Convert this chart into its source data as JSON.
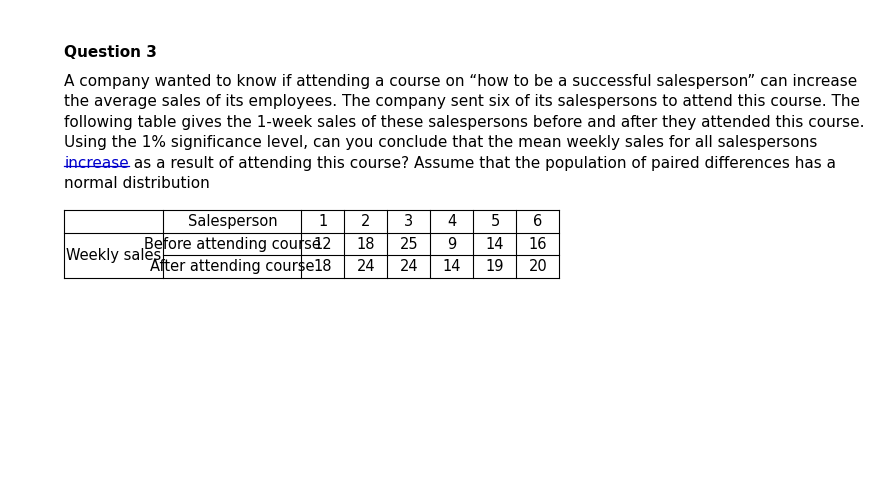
{
  "title": "Question 3",
  "para_lines": [
    "A company wanted to know if attending a course on “how to be a successful salesperson” can increase",
    "the average sales of its employees. The company sent six of its salespersons to attend this course. The",
    "following table gives the 1-week sales of these salespersons before and after they attended this course.",
    "Using the 1% significance level, can you conclude that the mean weekly sales for all salespersons",
    "increase as a result of attending this course? Assume that the population of paired differences has a",
    "normal distribution"
  ],
  "underline_word": "increase",
  "underline_line_idx": 4,
  "underline_color": "#0000cc",
  "row_label": "Weekly sales",
  "row1_label": "Before attending course",
  "row2_label": "After attending course",
  "salesperson_numbers": [
    "1",
    "2",
    "3",
    "4",
    "5",
    "6"
  ],
  "row1_data": [
    12,
    18,
    25,
    9,
    14,
    16
  ],
  "row2_data": [
    18,
    24,
    24,
    14,
    19,
    20
  ],
  "background_color": "#ffffff",
  "text_color": "#000000",
  "font_size": 11,
  "title_font_size": 11,
  "table_font_size": 10.5
}
